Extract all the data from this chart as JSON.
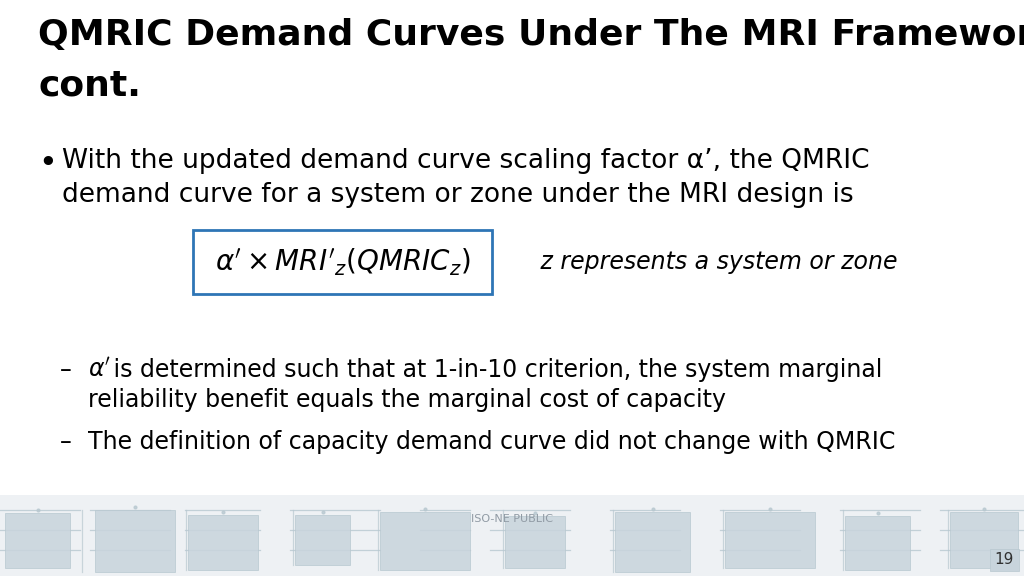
{
  "title_line1": "QMRIC Demand Curves Under The MRI Framework,",
  "title_line2": "cont.",
  "title_fontsize": 26,
  "bullet_text_line1": "With the updated demand curve scaling factor α’, the QMRIC",
  "bullet_text_line2": "demand curve for a system or zone under the MRI design is",
  "bullet_fontsize": 19,
  "formula_latex": "$\\alpha' \\times MRI'_z(QMRIC_z)$",
  "formula_annotation": "   z represents a system or zone",
  "formula_fontsize": 20,
  "formula_annotation_fontsize": 17,
  "formula_box_color": "#2e75b6",
  "sub_bullet1_alpha": "$\\alpha'$",
  "sub_bullet1_rest": " is determined such that at 1-in-10 criterion, the system marginal",
  "sub_bullet1_line2": "reliability benefit equals the marginal cost of capacity",
  "sub_bullet2_text": "The definition of capacity demand curve did not change with QMRIC",
  "sub_bullet_fontsize": 17,
  "footer_text": "ISO-NE PUBLIC",
  "page_number": "19",
  "bg_color": "#ffffff",
  "text_color": "#000000",
  "title_color": "#000000",
  "footer_bg": "#eef1f4",
  "circuit_color": "#c8d4dc",
  "circuit_line": "#b8c8d0"
}
